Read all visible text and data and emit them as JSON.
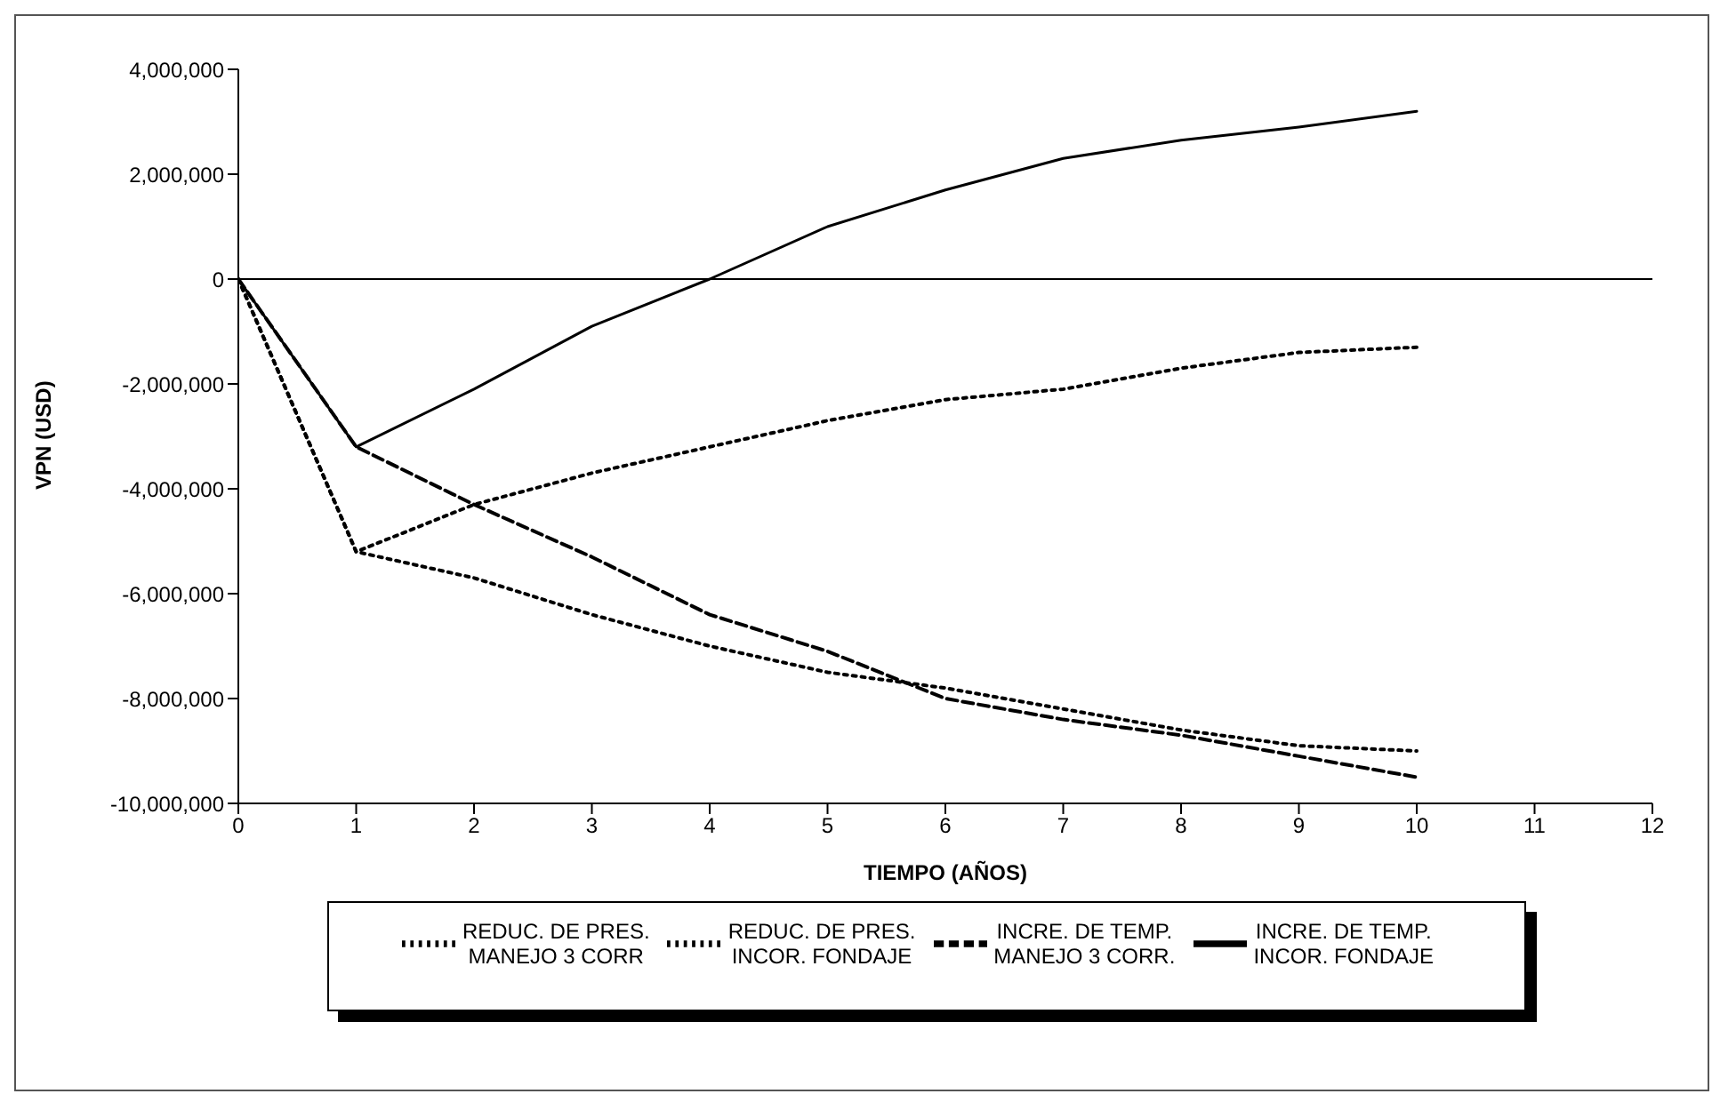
{
  "chart_data": {
    "type": "line",
    "xlabel": "TIEMPO (AÑOS)",
    "ylabel": "VPN (USD)",
    "x": [
      0,
      1,
      2,
      3,
      4,
      5,
      6,
      7,
      8,
      9,
      10
    ],
    "series": [
      {
        "name": "REDUC. DE PRES.\nMANEJO 3 CORR",
        "color": "#000000",
        "line_style": "dotted",
        "values": [
          0,
          -5200000,
          -5700000,
          -6400000,
          -7000000,
          -7500000,
          -7800000,
          -8200000,
          -8600000,
          -8900000,
          -9000000
        ]
      },
      {
        "name": "REDUC. DE PRES.\nINCOR. FONDAJE",
        "color": "#000000",
        "line_style": "dotted",
        "values": [
          0,
          -5200000,
          -4300000,
          -3700000,
          -3200000,
          -2700000,
          -2300000,
          -2100000,
          -1700000,
          -1400000,
          -1300000
        ]
      },
      {
        "name": "INCRE. DE TEMP.\nMANEJO 3 CORR.",
        "color": "#000000",
        "line_style": "dashed",
        "values": [
          0,
          -3200000,
          -4300000,
          -5300000,
          -6400000,
          -7100000,
          -8000000,
          -8400000,
          -8700000,
          -9100000,
          -9500000
        ]
      },
      {
        "name": "INCRE. DE TEMP.\nINCOR. FONDAJE",
        "color": "#000000",
        "line_style": "solid",
        "values": [
          0,
          -3200000,
          -2100000,
          -900000,
          0,
          1000000,
          1700000,
          2300000,
          2650000,
          2900000,
          3200000
        ]
      }
    ],
    "xlim": [
      0,
      12
    ],
    "xticks": [
      0,
      1,
      2,
      3,
      4,
      5,
      6,
      7,
      8,
      9,
      10,
      11,
      12
    ],
    "ylim": [
      -10000000,
      4000000
    ],
    "yticks": [
      {
        "value": -10000000,
        "label": "-10,000,000"
      },
      {
        "value": -8000000,
        "label": "-8,000,000"
      },
      {
        "value": -6000000,
        "label": "-6,000,000"
      },
      {
        "value": -4000000,
        "label": "-4,000,000"
      },
      {
        "value": -2000000,
        "label": "-2,000,000"
      },
      0,
      {
        "value": 2000000,
        "label": "2,000,000"
      },
      {
        "value": 4000000,
        "label": "4,000,000"
      }
    ],
    "ref_lines": [
      {
        "axis": "y",
        "value": 0,
        "color": "#000000"
      }
    ],
    "legend": "bottom",
    "marker": "none",
    "grid": false
  }
}
